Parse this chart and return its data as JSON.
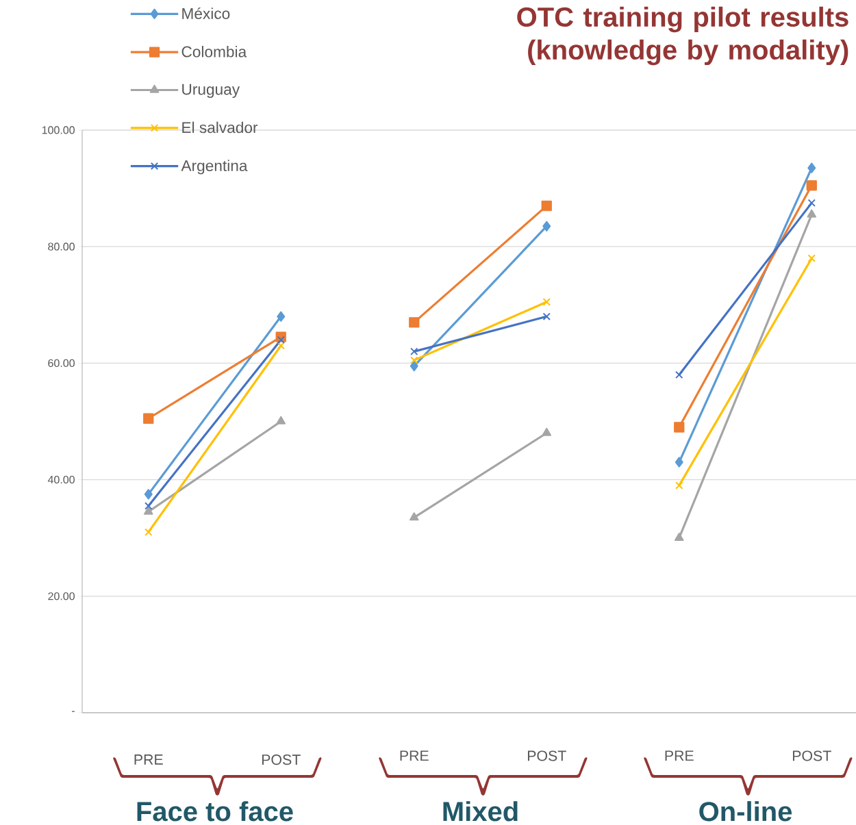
{
  "chart_data": [
    {
      "type": "line",
      "xlabel": "Face to face",
      "categories": [
        "PRE",
        "POST"
      ],
      "ylim": [
        0,
        100
      ],
      "yticks": [
        {
          "value": 0,
          "label": "-"
        },
        {
          "value": 20,
          "label": "20.00"
        },
        {
          "value": 40,
          "label": "40.00"
        },
        {
          "value": 60,
          "label": "60.00"
        },
        {
          "value": 80,
          "label": "80.00"
        },
        {
          "value": 100,
          "label": "100.00"
        }
      ],
      "grid": "y",
      "legend": "top left",
      "series": [
        {
          "name": "México",
          "color": "#5b9bd5",
          "marker": "diamond",
          "values": [
            37.5,
            68
          ]
        },
        {
          "name": "Colombia",
          "color": "#ed7d31",
          "marker": "square",
          "values": [
            50.5,
            64.5
          ]
        },
        {
          "name": "Uruguay",
          "color": "#a5a5a5",
          "marker": "triangle",
          "values": [
            34.5,
            50
          ]
        },
        {
          "name": "El salvador",
          "color": "#ffc000",
          "marker": "cross",
          "values": [
            31,
            63
          ]
        },
        {
          "name": "Argentina",
          "color": "#4472c4",
          "marker": "cross",
          "values": [
            35.5,
            64
          ]
        }
      ]
    },
    {
      "type": "line",
      "xlabel": "Mixed",
      "categories": [
        "PRE",
        "POST"
      ],
      "ylim": [
        0,
        100
      ],
      "yticks": [
        0,
        20,
        40,
        60,
        80,
        100
      ],
      "grid": "y",
      "tick_labels": "x",
      "series": [
        {
          "color": "#5b9bd5",
          "marker": "diamond",
          "values": [
            59.5,
            83.5
          ]
        },
        {
          "color": "#ed7d31",
          "marker": "square",
          "values": [
            67,
            87
          ]
        },
        {
          "color": "#a5a5a5",
          "marker": "triangle",
          "values": [
            33.5,
            48
          ]
        },
        {
          "color": "#ffc000",
          "marker": "cross",
          "values": [
            60.5,
            70.5
          ]
        },
        {
          "color": "#4472c4",
          "marker": "cross",
          "values": [
            62,
            68
          ]
        }
      ]
    },
    {
      "type": "line",
      "title": "OTC training pilot results (knowledge by modality)",
      "xlabel": "On-line",
      "categories": [
        "PRE",
        "POST"
      ],
      "ylim": [
        0,
        100
      ],
      "yticks": [
        0,
        20,
        40,
        60,
        80,
        100
      ],
      "grid": "y",
      "tick_labels": "x",
      "series": [
        {
          "color": "#5b9bd5",
          "marker": "diamond",
          "values": [
            43,
            93.5
          ]
        },
        {
          "color": "#ed7d31",
          "marker": "square",
          "values": [
            49,
            90.5
          ]
        },
        {
          "color": "#a5a5a5",
          "marker": "triangle",
          "values": [
            30,
            85.5
          ]
        },
        {
          "color": "#ffc000",
          "marker": "cross",
          "values": [
            39,
            78
          ]
        },
        {
          "color": "#4472c4",
          "marker": "cross",
          "values": [
            58,
            87.5
          ]
        }
      ]
    }
  ]
}
